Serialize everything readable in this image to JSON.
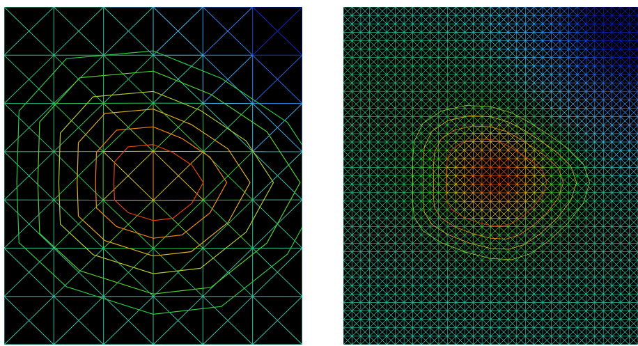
{
  "figure": {
    "panels": [
      {
        "id": "coarse-mesh",
        "grid_cols": 6,
        "grid_rows": 7,
        "density": "coarse"
      },
      {
        "id": "fine-mesh",
        "grid_cols": 34,
        "grid_rows": 40,
        "density": "fine"
      }
    ],
    "colormap": [
      "#0a1fbf",
      "#2f88ff",
      "#3cc7e8",
      "#20c05a",
      "#3ad12e",
      "#d8c628",
      "#ef8a14",
      "#e01a0a"
    ],
    "background": "#000000"
  }
}
